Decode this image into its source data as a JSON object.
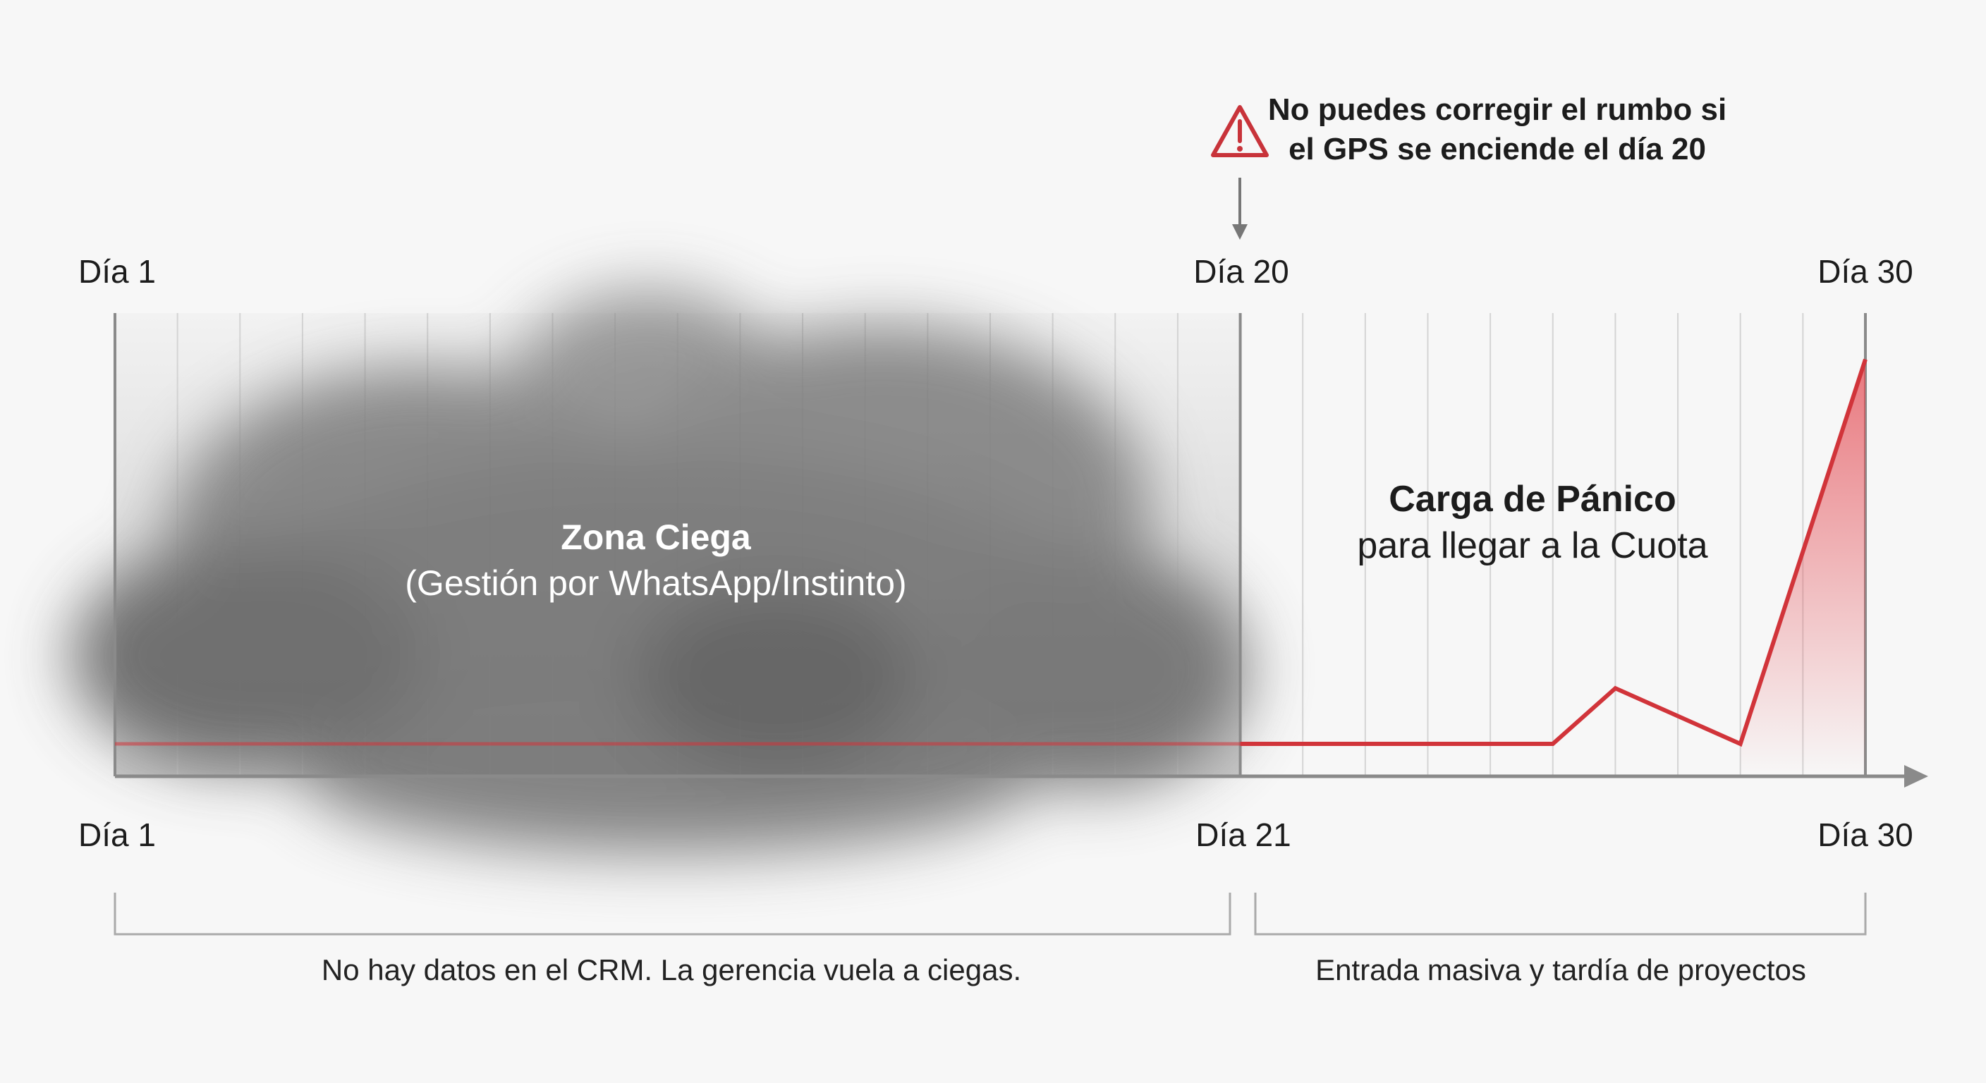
{
  "warning": {
    "icon": "warning-triangle-icon",
    "line1": "No puedes corregir el rumbo si",
    "line2": "el GPS se enciende el día 20",
    "color": "#c8333a"
  },
  "top_labels": {
    "start": "Día 1",
    "mid": "Día 20",
    "end": "Día 30"
  },
  "bottom_labels": {
    "start": "Día 1",
    "mid": "Día 21",
    "end": "Día 30"
  },
  "blind_zone": {
    "title": "Zona Ciega",
    "subtitle": "(Gestión por WhatsApp/Instinto)"
  },
  "panic": {
    "title": "Carga de Pánico",
    "subtitle": "para llegar a la Cuota"
  },
  "brackets": {
    "left_caption": "No hay datos en el CRM. La gerencia vuela a ciegas.",
    "right_caption": "Entrada masiva y tardía de proyectos"
  },
  "chart_data": {
    "type": "line",
    "grid_steps": 28,
    "blind_zone_steps": [
      0,
      18
    ],
    "series": [
      {
        "x": [
          0,
          18,
          23,
          24,
          26,
          28
        ],
        "y": [
          7,
          7,
          7,
          19,
          7,
          90
        ]
      }
    ],
    "ylim": [
      0,
      100
    ],
    "line_color": "#d1343a",
    "fill_color": "#e8595f"
  }
}
